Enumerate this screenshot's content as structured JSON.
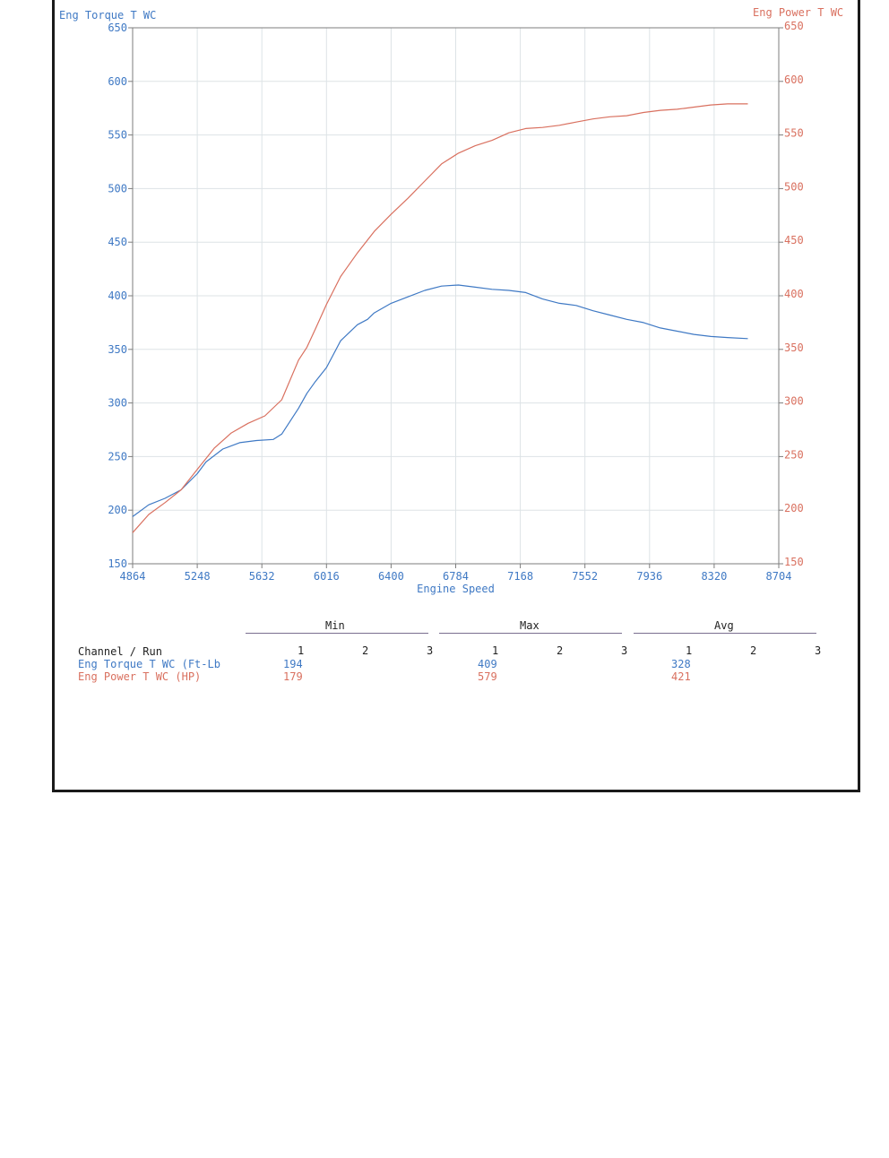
{
  "chart_data": {
    "type": "line",
    "x_label": "Engine Speed",
    "left_axis_title": "Eng Torque T WC",
    "right_axis_title": "Eng Power T WC",
    "xlim": [
      4864,
      8704
    ],
    "ylim_left": [
      150,
      650
    ],
    "ylim_right": [
      150,
      650
    ],
    "x_ticks": [
      "4864",
      "5248",
      "5632",
      "6016",
      "6400",
      "6784",
      "7168",
      "7552",
      "7936",
      "8320",
      "8704"
    ],
    "y_ticks_left": [
      "650",
      "600",
      "550",
      "500",
      "450",
      "400",
      "350",
      "300",
      "250",
      "200",
      "150"
    ],
    "y_ticks_right": [
      "650",
      "600",
      "550",
      "500",
      "450",
      "400",
      "350",
      "300",
      "250",
      "200",
      "150"
    ],
    "grid": true,
    "colors": {
      "torque": "#3f79c4",
      "power": "#d9705f"
    },
    "series": [
      {
        "axis": "left",
        "color": "#3f79c4",
        "x": [
          4864,
          4960,
          5056,
          5152,
          5248,
          5300,
          5400,
          5500,
          5600,
          5700,
          5750,
          5850,
          5900,
          5950,
          6016,
          6100,
          6200,
          6260,
          6300,
          6400,
          6500,
          6600,
          6700,
          6800,
          6900,
          7000,
          7100,
          7200,
          7300,
          7400,
          7500,
          7600,
          7700,
          7800,
          7900,
          8000,
          8100,
          8200,
          8300,
          8400,
          8520
        ],
        "values": [
          194,
          205,
          211,
          219,
          234,
          245,
          257,
          263,
          265,
          266,
          271,
          295,
          309,
          320,
          333,
          358,
          373,
          378,
          384,
          393,
          399,
          405,
          409,
          410,
          408,
          406,
          405,
          403,
          397,
          393,
          391,
          386,
          382,
          378,
          375,
          370,
          367,
          364,
          362,
          361,
          360
        ]
      },
      {
        "axis": "right",
        "color": "#d9705f",
        "x": [
          4864,
          4960,
          5056,
          5152,
          5248,
          5350,
          5450,
          5550,
          5650,
          5750,
          5850,
          5900,
          5950,
          6016,
          6100,
          6200,
          6300,
          6400,
          6500,
          6600,
          6700,
          6800,
          6900,
          7000,
          7100,
          7200,
          7300,
          7400,
          7500,
          7600,
          7700,
          7800,
          7900,
          8000,
          8100,
          8200,
          8300,
          8400,
          8520
        ],
        "values": [
          179,
          196,
          207,
          219,
          238,
          258,
          272,
          281,
          288,
          303,
          340,
          352,
          369,
          392,
          418,
          440,
          460,
          476,
          491,
          507,
          523,
          533,
          540,
          545,
          552,
          556,
          557,
          559,
          562,
          565,
          567,
          568,
          571,
          573,
          574,
          576,
          578,
          579,
          579
        ]
      }
    ]
  },
  "stats": {
    "groups": [
      "Min",
      "Max",
      "Avg"
    ],
    "header_label": "Channel / Run",
    "runs": [
      "1",
      "2",
      "3"
    ],
    "rows": [
      {
        "label": "Eng Torque T WC (Ft-Lb",
        "min": "194",
        "max": "409",
        "avg": "328"
      },
      {
        "label": "Eng Power T WC (HP)",
        "min": "179",
        "max": "579",
        "avg": "421"
      }
    ]
  }
}
